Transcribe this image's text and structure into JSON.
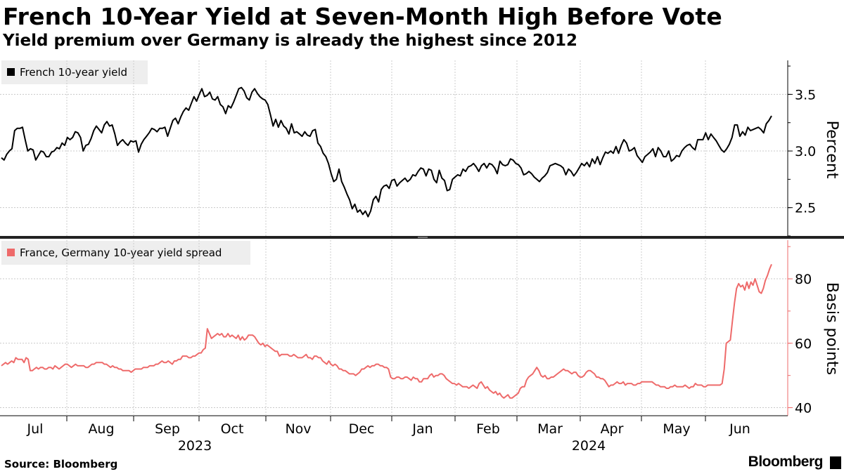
{
  "title": "French 10-Year Yield at Seven-Month High Before Vote",
  "subtitle": "Yield premium over Germany is already the highest since 2012",
  "source": "Source: Bloomberg",
  "brand": "Bloomberg",
  "colors": {
    "series_top": "#000000",
    "series_bottom": "#ee6a6a",
    "grid": "#c8c8c8",
    "legend_bg": "#eeeeee"
  },
  "chart_data": [
    {
      "type": "line",
      "panel": "top",
      "legend": "French 10-year yield",
      "ylabel": "Percent",
      "ylim": [
        2.25,
        3.8
      ],
      "yticks": [
        2.5,
        3.0,
        3.5
      ],
      "ytick_labels": [
        "2.5",
        "3.0",
        "3.5"
      ],
      "series": [
        {
          "name": "French 10-year yield",
          "values": [
            2.94,
            2.92,
            2.97,
            3.0,
            3.02,
            3.18,
            3.2,
            3.2,
            3.21,
            3.1,
            3.0,
            3.02,
            3.01,
            2.92,
            2.96,
            3.0,
            2.99,
            2.95,
            2.95,
            2.99,
            3.0,
            3.03,
            3.02,
            3.07,
            3.05,
            3.12,
            3.1,
            3.12,
            3.17,
            3.16,
            3.12,
            3.0,
            3.05,
            3.06,
            3.11,
            3.18,
            3.22,
            3.19,
            3.16,
            3.23,
            3.26,
            3.22,
            3.23,
            3.15,
            3.05,
            3.08,
            3.1,
            3.07,
            3.05,
            3.09,
            3.08,
            3.09,
            2.99,
            3.06,
            3.1,
            3.13,
            3.16,
            3.2,
            3.19,
            3.17,
            3.2,
            3.2,
            3.21,
            3.13,
            3.2,
            3.27,
            3.29,
            3.24,
            3.3,
            3.35,
            3.38,
            3.36,
            3.42,
            3.48,
            3.44,
            3.5,
            3.55,
            3.48,
            3.49,
            3.52,
            3.46,
            3.45,
            3.48,
            3.41,
            3.39,
            3.33,
            3.4,
            3.38,
            3.43,
            3.49,
            3.55,
            3.56,
            3.53,
            3.47,
            3.45,
            3.52,
            3.55,
            3.51,
            3.48,
            3.46,
            3.45,
            3.41,
            3.32,
            3.22,
            3.28,
            3.21,
            3.27,
            3.22,
            3.2,
            3.15,
            3.24,
            3.16,
            3.17,
            3.15,
            3.13,
            3.17,
            3.14,
            3.13,
            3.18,
            3.19,
            3.07,
            3.04,
            2.98,
            2.95,
            2.89,
            2.8,
            2.73,
            2.75,
            2.84,
            2.73,
            2.68,
            2.62,
            2.57,
            2.49,
            2.53,
            2.46,
            2.48,
            2.44,
            2.47,
            2.42,
            2.47,
            2.57,
            2.6,
            2.55,
            2.66,
            2.69,
            2.7,
            2.67,
            2.74,
            2.75,
            2.69,
            2.72,
            2.74,
            2.76,
            2.73,
            2.75,
            2.79,
            2.78,
            2.82,
            2.85,
            2.84,
            2.78,
            2.84,
            2.83,
            2.75,
            2.72,
            2.83,
            2.76,
            2.74,
            2.65,
            2.66,
            2.75,
            2.77,
            2.79,
            2.78,
            2.84,
            2.82,
            2.86,
            2.87,
            2.89,
            2.86,
            2.82,
            2.87,
            2.89,
            2.85,
            2.89,
            2.88,
            2.85,
            2.8,
            2.91,
            2.88,
            2.87,
            2.88,
            2.93,
            2.92,
            2.89,
            2.88,
            2.85,
            2.79,
            2.8,
            2.82,
            2.8,
            2.77,
            2.75,
            2.73,
            2.76,
            2.78,
            2.81,
            2.87,
            2.88,
            2.89,
            2.88,
            2.87,
            2.85,
            2.79,
            2.84,
            2.82,
            2.78,
            2.81,
            2.85,
            2.89,
            2.87,
            2.9,
            2.86,
            2.93,
            2.89,
            2.95,
            2.88,
            2.94,
            2.99,
            2.98,
            3.0,
            2.98,
            3.04,
            2.98,
            3.05,
            3.1,
            3.07,
            3.0,
            3.01,
            3.03,
            2.96,
            2.93,
            2.9,
            2.95,
            2.97,
            2.99,
            3.02,
            2.95,
            3.03,
            3.0,
            2.95,
            2.95,
            3.0,
            2.91,
            2.93,
            2.96,
            2.95,
            3.0,
            3.03,
            3.05,
            3.06,
            3.03,
            3.01,
            3.1,
            3.1,
            3.1,
            3.16,
            3.1,
            3.15,
            3.12,
            3.09,
            3.05,
            3.01,
            2.99,
            3.02,
            3.06,
            3.12,
            3.23,
            3.23,
            3.13,
            3.17,
            3.14,
            3.21,
            3.18,
            3.19,
            3.2,
            3.21,
            3.19,
            3.16,
            3.24,
            3.27,
            3.31
          ]
        }
      ]
    },
    {
      "type": "line",
      "panel": "bottom",
      "legend": "France, Germany 10-year yield spread",
      "ylabel": "Basis points",
      "ylim": [
        37.5,
        92
      ],
      "yticks": [
        40,
        60,
        80
      ],
      "ytick_labels": [
        "40",
        "60",
        "80"
      ],
      "series": [
        {
          "name": "France, Germany 10-year yield spread",
          "values": [
            53,
            53.5,
            54,
            53.5,
            54,
            54.5,
            54,
            55.5,
            55,
            55,
            55,
            54,
            55.5,
            55,
            51.5,
            51.5,
            52,
            52.5,
            52,
            52.5,
            52.5,
            52,
            52,
            52.5,
            52.5,
            52,
            53,
            52.5,
            52,
            52.5,
            53,
            53.5,
            53.5,
            53,
            52.5,
            53,
            53.5,
            53,
            53,
            53,
            53,
            52.5,
            52.5,
            53,
            53.5,
            53.5,
            54,
            54,
            54,
            54,
            53.5,
            53.5,
            53,
            52.5,
            53,
            52.5,
            52.5,
            52,
            52,
            51.5,
            51.5,
            51.5,
            51.5,
            51,
            51.5,
            52,
            52,
            52,
            52,
            52.5,
            52.5,
            52.5,
            53,
            53,
            53,
            53.5,
            53.5,
            54,
            54.5,
            54,
            54,
            54.5,
            54,
            53.5,
            54.5,
            54.5,
            55,
            55,
            56,
            56,
            56,
            55.5,
            55.5,
            56,
            56,
            56.5,
            57,
            57,
            58,
            58.5,
            64.5,
            63,
            61.5,
            62,
            62.5,
            63,
            62.5,
            63,
            62,
            62,
            63,
            62,
            62.5,
            62,
            61.5,
            62.5,
            61,
            62,
            61,
            61.5,
            62.5,
            62.5,
            62.5,
            62,
            61,
            60,
            59.5,
            60,
            59,
            59.5,
            59,
            58.5,
            58,
            57.5,
            57.5,
            56,
            56.5,
            56.5,
            56.5,
            56.5,
            56,
            56,
            56.5,
            56,
            55.5,
            55.5,
            55.5,
            56,
            56.5,
            55.5,
            55.5,
            55,
            56,
            56,
            55.5,
            55.5,
            54.5,
            54,
            53.5,
            54.5,
            53.5,
            53,
            53.5,
            53,
            52,
            52,
            51.5,
            51.5,
            51,
            50.5,
            50.5,
            50.5,
            50,
            50.5,
            51,
            52,
            52,
            52.5,
            53,
            52.5,
            53,
            53,
            53.5,
            53.5,
            53,
            53,
            52.5,
            52.5,
            52,
            49.5,
            49,
            49,
            49.5,
            49.5,
            49,
            49,
            49.5,
            49.5,
            49,
            48.5,
            49.5,
            49,
            49,
            48,
            48,
            49,
            49,
            49,
            50,
            50.5,
            49.5,
            50,
            50,
            50.5,
            50.5,
            50,
            49,
            48.5,
            48,
            47.5,
            47.5,
            47,
            47.5,
            47,
            46.5,
            46.5,
            46.5,
            46,
            46.5,
            47,
            46.5,
            46,
            47.5,
            48,
            47,
            46,
            46.5,
            45.5,
            45,
            44.5,
            45,
            44,
            44.5,
            43.5,
            43,
            43.5,
            44,
            43,
            43,
            43.5,
            44,
            44.5,
            46,
            46.5,
            46.5,
            48.5,
            49.5,
            50,
            50.5,
            51.5,
            52.5,
            51.5,
            50,
            49.5,
            50,
            49,
            49,
            49.5,
            49.5,
            50,
            50.5,
            51,
            51.5,
            52,
            51.5,
            51.5,
            51,
            50.5,
            51,
            51,
            50,
            49.5,
            49.5,
            50,
            51,
            51.5,
            51.5,
            51,
            50.5,
            49.5,
            49.5,
            49,
            49,
            48.5,
            47.5,
            46.5,
            47,
            47,
            47.5,
            48,
            47.5,
            47.5,
            48,
            47,
            47.5,
            47.5,
            47.5,
            47,
            47,
            47.5,
            47.5,
            48,
            48,
            48,
            48,
            48,
            48,
            47.5,
            47,
            47,
            46.5,
            46.5,
            46.5,
            46,
            46,
            46.5,
            46.5,
            47,
            46.5,
            46.5,
            46.5,
            46.5,
            47,
            46.5,
            46,
            46.5,
            46.5,
            47.5,
            47,
            47,
            47,
            46.5,
            46.5,
            47,
            47,
            47,
            47,
            47,
            47,
            47,
            47.5,
            52,
            60,
            60.5,
            61,
            67,
            72.5,
            77,
            78.5,
            77.5,
            78,
            76.5,
            79,
            77,
            79,
            78,
            80,
            78,
            76,
            75.5,
            77,
            79.5,
            81,
            83,
            84.5
          ]
        }
      ]
    }
  ],
  "x_axis": {
    "months": [
      "Jul",
      "Aug",
      "Sep",
      "Oct",
      "Nov",
      "Dec",
      "Jan",
      "Feb",
      "Mar",
      "Apr",
      "May",
      "Jun"
    ],
    "years": [
      "2023",
      "2024"
    ]
  }
}
